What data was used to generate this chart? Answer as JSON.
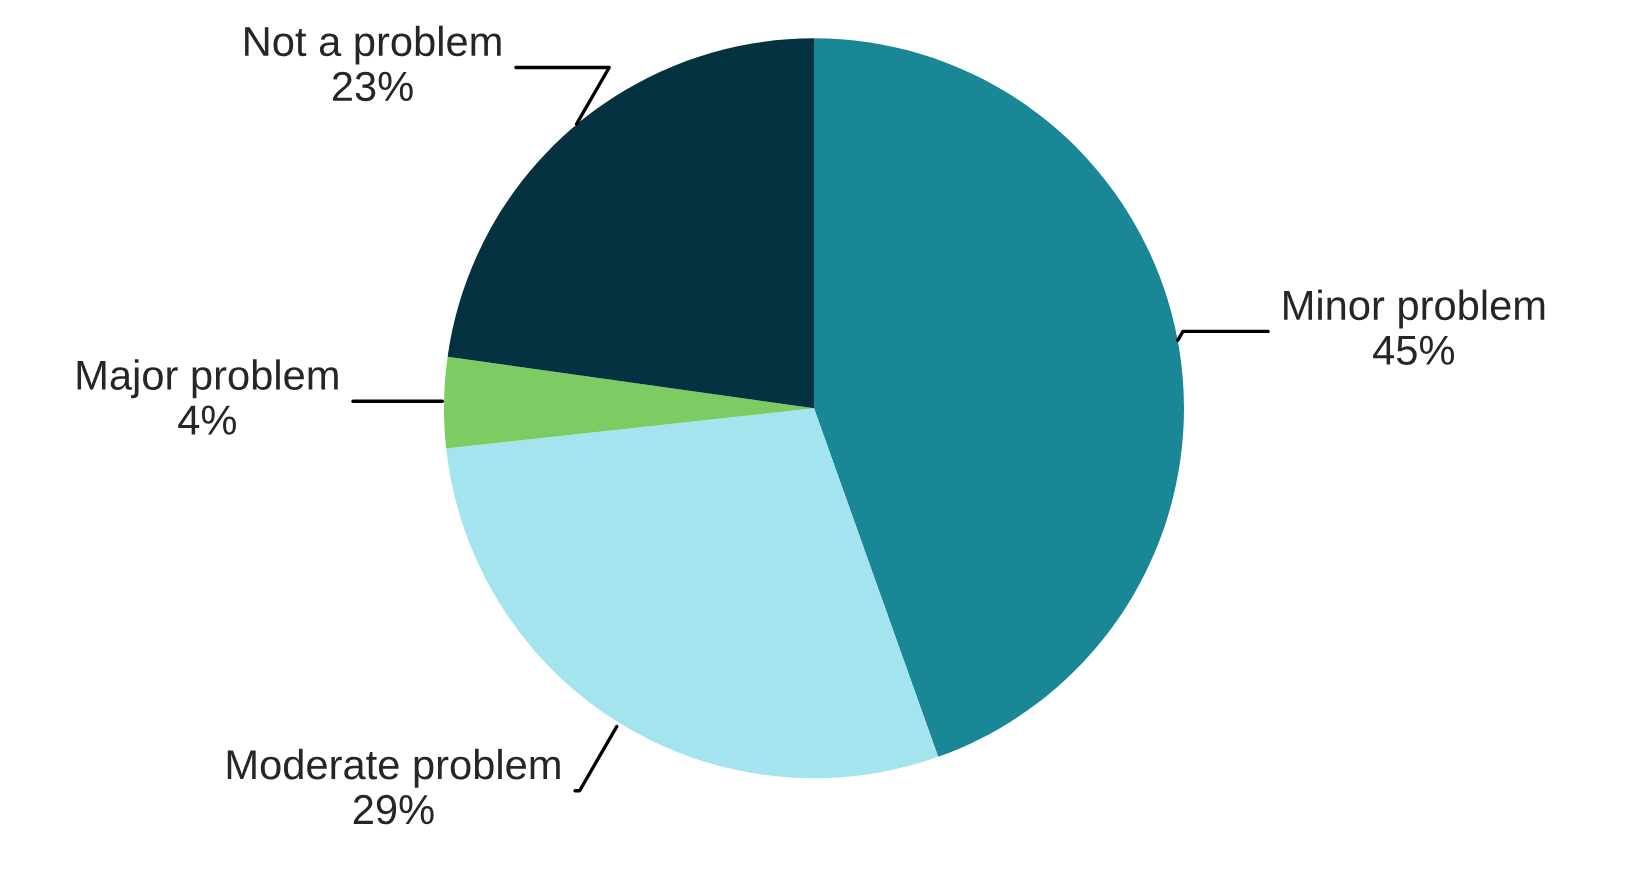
{
  "chart_data": {
    "type": "pie",
    "categories": [
      "Minor problem",
      "Moderate problem",
      "Major problem",
      "Not a problem"
    ],
    "values": [
      45,
      29,
      4,
      23
    ],
    "value_labels": [
      "45%",
      "29%",
      "4%",
      "23%"
    ],
    "colors": [
      "#1a8796",
      "#a3e4ef",
      "#7dcb63",
      "#053240"
    ],
    "legend": false
  }
}
